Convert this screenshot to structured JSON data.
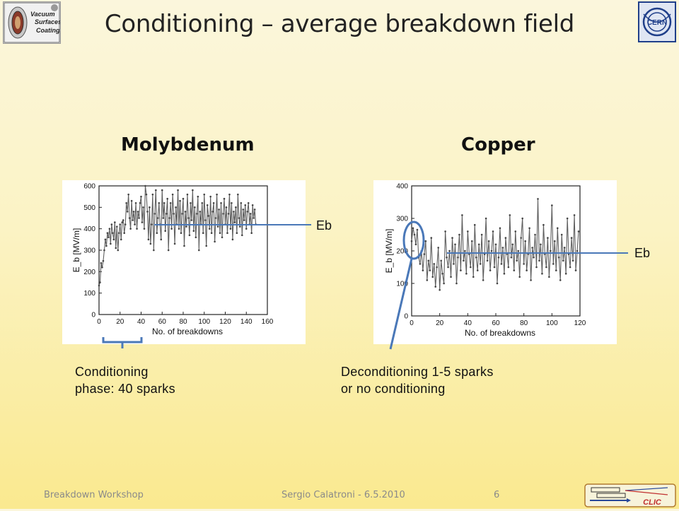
{
  "slide": {
    "title": "Conditioning – average breakdown field",
    "left_heading": "Molybdenum",
    "right_heading": "Copper",
    "left_eb_label": "Eb",
    "right_eb_label": "Eb",
    "left_note_line1": "Conditioning",
    "left_note_line2": "phase: 40 sparks",
    "right_note_line1": "Deconditioning 1-5 sparks",
    "right_note_line2": "or no conditioning"
  },
  "logos": {
    "left_logo_text_1": "Vacuum",
    "left_logo_text_2": "Surfaces",
    "left_logo_text_3": "Coatings",
    "right_logo_text": "CERN",
    "clic_logo_text": "CLIC"
  },
  "footer": {
    "left": "Breakdown Workshop",
    "center": "Sergio Calatroni - 6.5.2010",
    "page": "6"
  },
  "colors": {
    "accent_line": "#4a78b8",
    "series_gray": "#5f5f5f"
  },
  "chart_data": [
    {
      "type": "line",
      "title": "",
      "xlabel": "No. of breakdowns",
      "ylabel": "E_b [MV/m]",
      "xlim": [
        0,
        160
      ],
      "ylim": [
        0,
        600
      ],
      "xticks": [
        "0",
        "20",
        "40",
        "60",
        "80",
        "100",
        "120",
        "140",
        "160"
      ],
      "yticks": [
        "0",
        "100",
        "200",
        "300",
        "400",
        "500",
        "600"
      ],
      "average_eb": 420,
      "series": [
        {
          "values": [
            135,
            150,
            240,
            220,
            250,
            300,
            350,
            320,
            380,
            360,
            400,
            330,
            420,
            380,
            350,
            430,
            310,
            410,
            300,
            380,
            420,
            350,
            430,
            440,
            380,
            420,
            520,
            480,
            560,
            450,
            400,
            530,
            440,
            480,
            420,
            520,
            400,
            480,
            450,
            520,
            550,
            430,
            500,
            400,
            600,
            560,
            480,
            350,
            500,
            330,
            420,
            560,
            300,
            470,
            580,
            380,
            450,
            520,
            420,
            350,
            580,
            450,
            520,
            390,
            470,
            540,
            300,
            450,
            520,
            400,
            560,
            470,
            330,
            500,
            420,
            580,
            400,
            530,
            380,
            470,
            540,
            320,
            480,
            410,
            560,
            450,
            370,
            520,
            440,
            580,
            390,
            500,
            360,
            470,
            550,
            300,
            480,
            420,
            520,
            380,
            560,
            440,
            320,
            510,
            460,
            400,
            550,
            380,
            480,
            520,
            340,
            450,
            560,
            410,
            490,
            380,
            520,
            360,
            470,
            540,
            420,
            500,
            380,
            470,
            560,
            400,
            520,
            350,
            480,
            430,
            500,
            380,
            560,
            450,
            410,
            520,
            370,
            490,
            440,
            510,
            400,
            480,
            520,
            420,
            470,
            380,
            510,
            450,
            490,
            420
          ]
        }
      ]
    },
    {
      "type": "line",
      "title": "",
      "xlabel": "No. of breakdowns",
      "ylabel": "E_b [MV/m]",
      "xlim": [
        0,
        120
      ],
      "ylim": [
        0,
        400
      ],
      "xticks": [
        "0",
        "20",
        "40",
        "60",
        "80",
        "100",
        "120"
      ],
      "yticks": [
        "0",
        "100",
        "200",
        "300",
        "400"
      ],
      "average_eb": 200,
      "series": [
        {
          "values": [
            230,
            270,
            250,
            220,
            265,
            180,
            160,
            200,
            140,
            190,
            230,
            110,
            170,
            140,
            240,
            120,
            160,
            90,
            150,
            210,
            80,
            170,
            130,
            100,
            260,
            180,
            150,
            200,
            120,
            240,
            160,
            220,
            100,
            180,
            250,
            140,
            310,
            170,
            200,
            130,
            260,
            190,
            150,
            230,
            120,
            280,
            180,
            140,
            220,
            160,
            250,
            110,
            190,
            300,
            170,
            230,
            140,
            200,
            260,
            150,
            220,
            100,
            180,
            270,
            160,
            210,
            130,
            240,
            190,
            150,
            310,
            180,
            220,
            140,
            260,
            170,
            200,
            120,
            240,
            300,
            160,
            230,
            140,
            190,
            270,
            110,
            210,
            180,
            250,
            150,
            360,
            170,
            220,
            130,
            280,
            190,
            150,
            240,
            120,
            200,
            340,
            160,
            230,
            140,
            270,
            180,
            110,
            250,
            170,
            210,
            130,
            300,
            190,
            150,
            240,
            170,
            310,
            140,
            200,
            260
          ]
        }
      ]
    }
  ]
}
